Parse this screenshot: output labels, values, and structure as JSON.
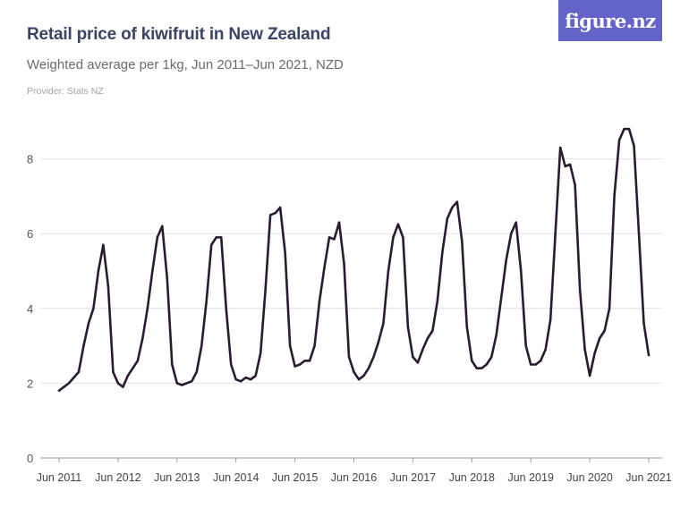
{
  "header": {
    "title": "Retail price of kiwifruit in New Zealand",
    "subtitle": "Weighted average per 1kg, Jun 2011–Jun 2021, NZD",
    "provider": "Provider: Stats NZ",
    "logo": "figure.nz"
  },
  "colors": {
    "line": "#2a1a32",
    "logo_bg": "#6464c8",
    "title": "#3b4466"
  },
  "chart_data": {
    "type": "line",
    "title": "Retail price of kiwifruit in New Zealand",
    "xlabel": "",
    "ylabel": "",
    "ylim": [
      0,
      9
    ],
    "yticks": [
      0,
      2,
      4,
      6,
      8
    ],
    "xticks": [
      "Jun 2011",
      "Jun 2012",
      "Jun 2013",
      "Jun 2014",
      "Jun 2015",
      "Jun 2016",
      "Jun 2017",
      "Jun 2018",
      "Jun 2019",
      "Jun 2020",
      "Jun 2021"
    ],
    "grid": true,
    "series": [
      {
        "name": "Weighted average price per 1kg (NZD)",
        "start": "Jun 2011",
        "frequency": "monthly",
        "values": [
          1.8,
          1.9,
          2.0,
          2.15,
          2.3,
          3.0,
          3.6,
          4.0,
          5.0,
          5.7,
          4.6,
          2.3,
          2.0,
          1.9,
          2.2,
          2.4,
          2.6,
          3.2,
          4.0,
          5.0,
          5.9,
          6.2,
          4.8,
          2.5,
          2.0,
          1.95,
          2.0,
          2.05,
          2.3,
          3.0,
          4.2,
          5.7,
          5.9,
          5.9,
          4.0,
          2.5,
          2.1,
          2.05,
          2.15,
          2.1,
          2.2,
          2.8,
          4.5,
          6.5,
          6.55,
          6.7,
          5.5,
          3.0,
          2.45,
          2.5,
          2.6,
          2.6,
          3.0,
          4.2,
          5.1,
          5.9,
          5.85,
          6.3,
          5.2,
          2.7,
          2.3,
          2.1,
          2.2,
          2.4,
          2.7,
          3.1,
          3.6,
          5.0,
          5.9,
          6.25,
          5.9,
          3.5,
          2.7,
          2.55,
          2.9,
          3.2,
          3.4,
          4.2,
          5.5,
          6.4,
          6.7,
          6.85,
          5.8,
          3.5,
          2.6,
          2.4,
          2.4,
          2.5,
          2.7,
          3.3,
          4.3,
          5.3,
          6.0,
          6.3,
          5.0,
          3.0,
          2.5,
          2.5,
          2.6,
          2.9,
          3.7,
          6.0,
          8.3,
          7.8,
          7.85,
          7.3,
          4.5,
          2.9,
          2.2,
          2.8,
          3.2,
          3.4,
          4.0,
          7.0,
          8.5,
          8.8,
          8.8,
          8.35,
          6.0,
          3.6,
          2.75
        ]
      }
    ]
  }
}
